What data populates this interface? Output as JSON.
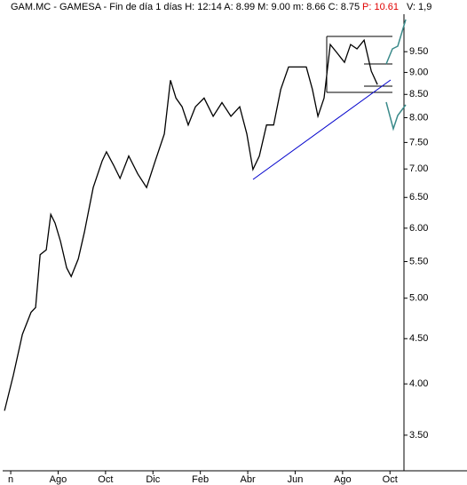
{
  "chart_data": {
    "type": "line",
    "log_scale": true,
    "title": "GAM.MC - GAMESA - Fin de día 1 días H: 12:14 A: 8.99 M: 9.00 m: 8.66 C: 8.75",
    "subtitle": "P: 10.61",
    "note": "V: 1,9",
    "x": [
      -0.26,
      0.11,
      0.49,
      0.86,
      1.05,
      1.24,
      1.5,
      1.69,
      1.87,
      2.1,
      2.36,
      2.55,
      2.85,
      3.11,
      3.48,
      3.86,
      4.04,
      4.34,
      4.61,
      4.98,
      5.36,
      5.73,
      6.1,
      6.48,
      6.74,
      6.97,
      7.23,
      7.49,
      7.79,
      8.16,
      8.54,
      8.91,
      9.29,
      9.66,
      9.96,
      10.22,
      10.49,
      10.79,
      11.09,
      11.39,
      11.72,
      12.1,
      12.47,
      12.73,
      12.96,
      13.22,
      13.48,
      13.78,
      14.08,
      14.34,
      14.61,
      14.91,
      15.21,
      15.47
    ],
    "series": [
      {
        "name": "GAM.MC",
        "color": "#000000",
        "values": [
          3.73,
          4.09,
          4.55,
          4.82,
          4.88,
          5.6,
          5.67,
          6.22,
          6.08,
          5.8,
          5.41,
          5.29,
          5.54,
          5.94,
          6.67,
          7.15,
          7.32,
          7.07,
          6.83,
          7.24,
          6.91,
          6.67,
          7.15,
          7.67,
          8.82,
          8.42,
          8.23,
          7.85,
          8.23,
          8.42,
          8.03,
          8.32,
          8.03,
          8.23,
          7.67,
          6.99,
          7.24,
          7.85,
          7.85,
          8.61,
          9.13,
          9.13,
          9.13,
          8.61,
          8.03,
          8.42,
          9.68,
          9.46,
          9.24,
          9.68,
          9.57,
          9.79,
          9.03,
          8.72
        ]
      }
    ],
    "xlim": [
      -0.34,
      16.59
    ],
    "xticks": [
      {
        "value": 0,
        "label": "n"
      },
      {
        "value": 2,
        "label": "Ago"
      },
      {
        "value": 4,
        "label": "Oct"
      },
      {
        "value": 6,
        "label": "Dic"
      },
      {
        "value": 8,
        "label": "Feb"
      },
      {
        "value": 10,
        "label": "Abr"
      },
      {
        "value": 12,
        "label": "Jun"
      },
      {
        "value": 14,
        "label": "Ago"
      },
      {
        "value": 16,
        "label": "Oct"
      }
    ],
    "ylim": [
      3.19,
      10.62
    ],
    "yticks": [
      {
        "value": 3.5,
        "label": "3.50"
      },
      {
        "value": 4,
        "label": "4.00"
      },
      {
        "value": 4.5,
        "label": "4.50"
      },
      {
        "value": 5,
        "label": "5.00"
      },
      {
        "value": 5.5,
        "label": "5.50"
      },
      {
        "value": 6,
        "label": "6.00"
      },
      {
        "value": 6.5,
        "label": "6.50"
      },
      {
        "value": 7,
        "label": "7.00"
      },
      {
        "value": 7.5,
        "label": "7.50"
      },
      {
        "value": 8,
        "label": "8.00"
      },
      {
        "value": 8.5,
        "label": "8.50"
      },
      {
        "value": 9,
        "label": "9.00"
      },
      {
        "value": 9.5,
        "label": "9.50"
      }
    ]
  }
}
